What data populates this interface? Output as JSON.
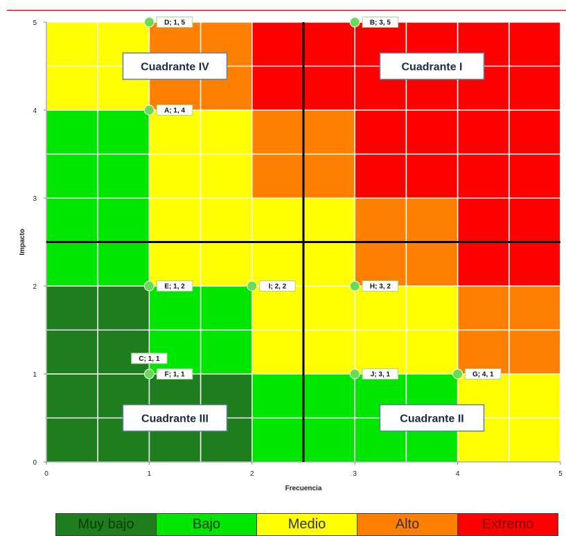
{
  "chart_data": {
    "type": "scatter",
    "xlabel": "Frecuencia",
    "ylabel": "Impacto",
    "xlim": [
      0,
      5
    ],
    "ylim": [
      0,
      5
    ],
    "xticks": [
      "0",
      "1",
      "2",
      "3",
      "4",
      "5"
    ],
    "yticks": [
      "0",
      "1",
      "2",
      "3",
      "4",
      "5"
    ],
    "grid": true,
    "quadrant_divider": {
      "x": 2.5,
      "y": 2.5
    },
    "risk_levels": {
      "muy_bajo": "#1e7e1e",
      "bajo": "#00e600",
      "medio": "#ffff00",
      "alto": "#ff8000",
      "extremo": "#ff0000"
    },
    "risk_zones": [
      {
        "level": "muy_bajo",
        "x": [
          0,
          1
        ],
        "y": [
          0,
          2
        ]
      },
      {
        "level": "muy_bajo",
        "x": [
          1,
          2
        ],
        "y": [
          0,
          1
        ]
      },
      {
        "level": "bajo",
        "x": [
          0,
          1
        ],
        "y": [
          2,
          4
        ]
      },
      {
        "level": "bajo",
        "x": [
          1,
          2
        ],
        "y": [
          1,
          2
        ]
      },
      {
        "level": "bajo",
        "x": [
          2,
          2.5
        ],
        "y": [
          0,
          1
        ]
      },
      {
        "level": "bajo",
        "x": [
          2.5,
          4
        ],
        "y": [
          0,
          1
        ]
      },
      {
        "level": "medio",
        "x": [
          0,
          1
        ],
        "y": [
          4,
          5
        ]
      },
      {
        "level": "medio",
        "x": [
          1,
          2
        ],
        "y": [
          2,
          4
        ]
      },
      {
        "level": "medio",
        "x": [
          2,
          2.5
        ],
        "y": [
          1,
          3
        ]
      },
      {
        "level": "medio",
        "x": [
          2.5,
          3
        ],
        "y": [
          1,
          3
        ]
      },
      {
        "level": "medio",
        "x": [
          3,
          4
        ],
        "y": [
          1,
          2
        ]
      },
      {
        "level": "medio",
        "x": [
          4,
          5
        ],
        "y": [
          0,
          1
        ]
      },
      {
        "level": "alto",
        "x": [
          1,
          2
        ],
        "y": [
          4,
          5
        ]
      },
      {
        "level": "alto",
        "x": [
          2,
          2.5
        ],
        "y": [
          3,
          4
        ]
      },
      {
        "level": "alto",
        "x": [
          2.5,
          3
        ],
        "y": [
          3,
          4
        ]
      },
      {
        "level": "alto",
        "x": [
          3,
          4
        ],
        "y": [
          2,
          3
        ]
      },
      {
        "level": "alto",
        "x": [
          4,
          5
        ],
        "y": [
          1,
          2
        ]
      },
      {
        "level": "extremo",
        "x": [
          2,
          2.5
        ],
        "y": [
          4,
          5
        ]
      },
      {
        "level": "extremo",
        "x": [
          2.5,
          3
        ],
        "y": [
          4,
          5
        ]
      },
      {
        "level": "extremo",
        "x": [
          3,
          5
        ],
        "y": [
          3,
          5
        ]
      },
      {
        "level": "extremo",
        "x": [
          4,
          5
        ],
        "y": [
          2,
          3
        ]
      }
    ],
    "quadrants": [
      {
        "label": "Cuadrante IV",
        "x": 1.25,
        "y": 4.5
      },
      {
        "label": "Cuadrante I",
        "x": 3.75,
        "y": 4.5
      },
      {
        "label": "Cuadrante III",
        "x": 1.25,
        "y": 0.5
      },
      {
        "label": "Cuadrante II",
        "x": 3.75,
        "y": 0.5
      }
    ],
    "points": [
      {
        "label": "D; 1, 5",
        "x": 1,
        "y": 5,
        "label_side": "right"
      },
      {
        "label": "B; 3, 5",
        "x": 3,
        "y": 5,
        "label_side": "right"
      },
      {
        "label": "A; 1, 4",
        "x": 1,
        "y": 4,
        "label_side": "right"
      },
      {
        "label": "E; 1, 2",
        "x": 1,
        "y": 2,
        "label_side": "right"
      },
      {
        "label": "I; 2, 2",
        "x": 2,
        "y": 2,
        "label_side": "right"
      },
      {
        "label": "H; 3, 2",
        "x": 3,
        "y": 2,
        "label_side": "right"
      },
      {
        "label": "C; 1, 1",
        "x": 1,
        "y": 1,
        "label_side": "above"
      },
      {
        "label": "F; 1, 1",
        "x": 1,
        "y": 1,
        "label_side": "right"
      },
      {
        "label": "J; 3, 1",
        "x": 3,
        "y": 1,
        "label_side": "right"
      },
      {
        "label": "G; 4, 1",
        "x": 4,
        "y": 1,
        "label_side": "right"
      }
    ]
  },
  "legend": [
    {
      "label": "Muy bajo",
      "color": "#1e7e1e",
      "text_color": "#0a3a0a"
    },
    {
      "label": "Bajo",
      "color": "#00e600",
      "text_color": "#0a3a0a"
    },
    {
      "label": "Medio",
      "color": "#ffff00",
      "text_color": "#333333"
    },
    {
      "label": "Alto",
      "color": "#ff8000",
      "text_color": "#333333"
    },
    {
      "label": "Extremo",
      "color": "#ff0000",
      "text_color": "#7a0000"
    }
  ]
}
